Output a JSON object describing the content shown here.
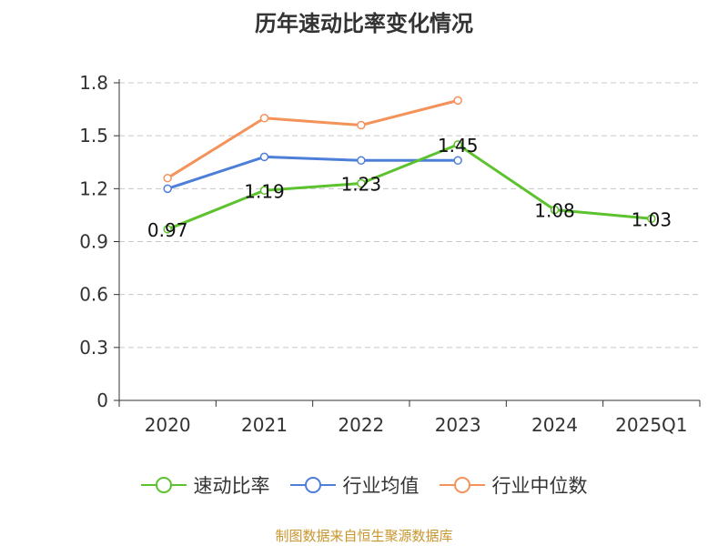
{
  "chart_data": {
    "type": "line",
    "title": "历年速动比率变化情况",
    "categories": [
      "2020",
      "2021",
      "2022",
      "2023",
      "2024",
      "2025Q1"
    ],
    "ylim": [
      0,
      1.8
    ],
    "yticks": [
      "0",
      "0.3",
      "0.6",
      "0.9",
      "1.2",
      "1.5",
      "1.8"
    ],
    "ytick_values": [
      0,
      0.3,
      0.6,
      0.9,
      1.2,
      1.5,
      1.8
    ],
    "grid": true,
    "legend_position": "bottom",
    "series": [
      {
        "name": "速动比率",
        "color": "#5cc22d",
        "values": [
          0.97,
          1.19,
          1.23,
          1.45,
          1.08,
          1.03
        ],
        "labels": [
          "0.97",
          "1.19",
          "1.23",
          "1.45",
          "1.08",
          "1.03"
        ],
        "show_labels": true
      },
      {
        "name": "行业均值",
        "color": "#4d7fd9",
        "values": [
          1.2,
          1.38,
          1.36,
          1.36,
          null,
          null
        ],
        "show_labels": false
      },
      {
        "name": "行业中位数",
        "color": "#f4925a",
        "values": [
          1.26,
          1.6,
          1.56,
          1.7,
          null,
          null
        ],
        "show_labels": false
      }
    ]
  },
  "footer": {
    "text": "制图数据来自恒生聚源数据库",
    "color": "#c8962d"
  }
}
